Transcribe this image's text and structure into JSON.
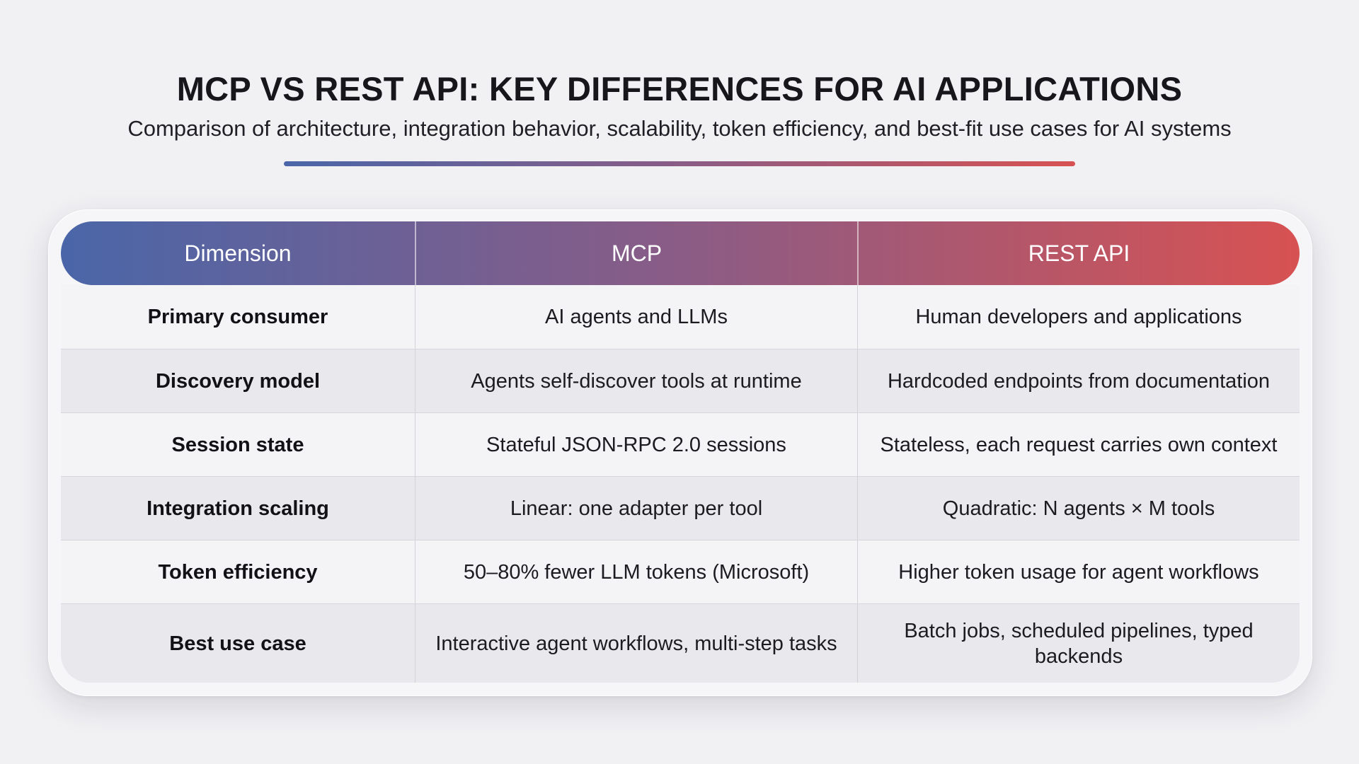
{
  "header": {
    "title": "MCP VS REST API: KEY DIFFERENCES FOR AI APPLICATIONS",
    "subtitle": "Comparison of architecture, integration behavior, scalability, token efficiency, and best-fit use cases for AI systems"
  },
  "colors": {
    "gradient_start": "#4a66a8",
    "gradient_mid": "#8a5c86",
    "gradient_end": "#d75252",
    "background": "#f1f1f4"
  },
  "table": {
    "columns": [
      "Dimension",
      "MCP",
      "REST API"
    ],
    "rows": [
      {
        "dimension": "Primary consumer",
        "mcp": "AI agents and LLMs",
        "rest": "Human developers and applications"
      },
      {
        "dimension": "Discovery model",
        "mcp": "Agents self-discover tools at runtime",
        "rest": "Hardcoded endpoints from documentation"
      },
      {
        "dimension": "Session state",
        "mcp": "Stateful JSON-RPC 2.0 sessions",
        "rest": "Stateless, each request carries own context"
      },
      {
        "dimension": "Integration scaling",
        "mcp": "Linear: one adapter per tool",
        "rest": "Quadratic: N agents × M tools"
      },
      {
        "dimension": "Token efficiency",
        "mcp": "50–80% fewer LLM tokens (Microsoft)",
        "rest": "Higher token usage for agent workflows"
      },
      {
        "dimension": "Best use case",
        "mcp": "Interactive agent workflows, multi-step tasks",
        "rest": "Batch jobs, scheduled pipelines, typed backends"
      }
    ]
  }
}
